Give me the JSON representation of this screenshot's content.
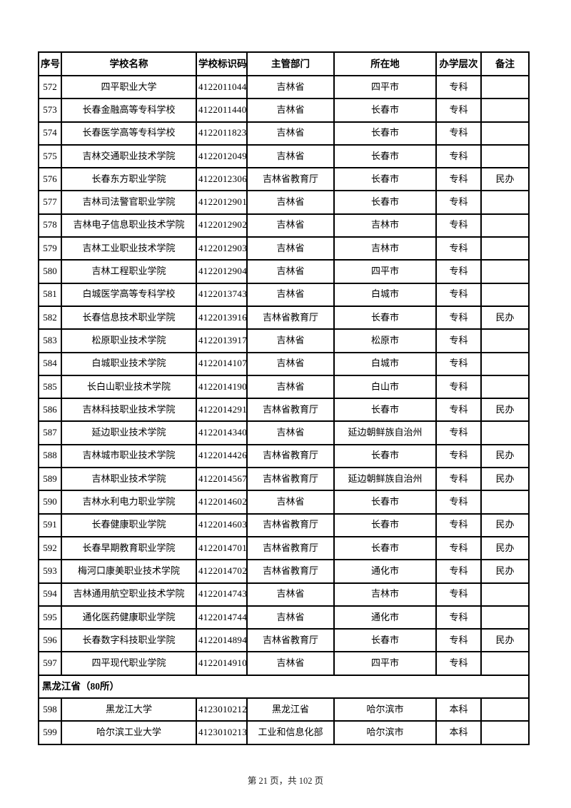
{
  "table": {
    "headers": [
      "序号",
      "学校名称",
      "学校标识码",
      "主管部门",
      "所在地",
      "办学层次",
      "备注"
    ],
    "rows": [
      {
        "cells": [
          "572",
          "四平职业大学",
          "4122011044",
          "吉林省",
          "四平市",
          "专科",
          ""
        ]
      },
      {
        "cells": [
          "573",
          "长春金融高等专科学校",
          "4122011440",
          "吉林省",
          "长春市",
          "专科",
          ""
        ]
      },
      {
        "cells": [
          "574",
          "长春医学高等专科学校",
          "4122011823",
          "吉林省",
          "长春市",
          "专科",
          ""
        ]
      },
      {
        "cells": [
          "575",
          "吉林交通职业技术学院",
          "4122012049",
          "吉林省",
          "长春市",
          "专科",
          ""
        ]
      },
      {
        "cells": [
          "576",
          "长春东方职业学院",
          "4122012306",
          "吉林省教育厅",
          "长春市",
          "专科",
          "民办"
        ]
      },
      {
        "cells": [
          "577",
          "吉林司法警官职业学院",
          "4122012901",
          "吉林省",
          "长春市",
          "专科",
          ""
        ]
      },
      {
        "cells": [
          "578",
          "吉林电子信息职业技术学院",
          "4122012902",
          "吉林省",
          "吉林市",
          "专科",
          ""
        ]
      },
      {
        "cells": [
          "579",
          "吉林工业职业技术学院",
          "4122012903",
          "吉林省",
          "吉林市",
          "专科",
          ""
        ]
      },
      {
        "cells": [
          "580",
          "吉林工程职业学院",
          "4122012904",
          "吉林省",
          "四平市",
          "专科",
          ""
        ]
      },
      {
        "cells": [
          "581",
          "白城医学高等专科学校",
          "4122013743",
          "吉林省",
          "白城市",
          "专科",
          ""
        ]
      },
      {
        "cells": [
          "582",
          "长春信息技术职业学院",
          "4122013916",
          "吉林省教育厅",
          "长春市",
          "专科",
          "民办"
        ]
      },
      {
        "cells": [
          "583",
          "松原职业技术学院",
          "4122013917",
          "吉林省",
          "松原市",
          "专科",
          ""
        ]
      },
      {
        "cells": [
          "584",
          "白城职业技术学院",
          "4122014107",
          "吉林省",
          "白城市",
          "专科",
          ""
        ]
      },
      {
        "cells": [
          "585",
          "长白山职业技术学院",
          "4122014190",
          "吉林省",
          "白山市",
          "专科",
          ""
        ]
      },
      {
        "cells": [
          "586",
          "吉林科技职业技术学院",
          "4122014291",
          "吉林省教育厅",
          "长春市",
          "专科",
          "民办"
        ]
      },
      {
        "cells": [
          "587",
          "延边职业技术学院",
          "4122014340",
          "吉林省",
          "延边朝鲜族自治州",
          "专科",
          ""
        ]
      },
      {
        "cells": [
          "588",
          "吉林城市职业技术学院",
          "4122014426",
          "吉林省教育厅",
          "长春市",
          "专科",
          "民办"
        ]
      },
      {
        "cells": [
          "589",
          "吉林职业技术学院",
          "4122014567",
          "吉林省教育厅",
          "延边朝鲜族自治州",
          "专科",
          "民办"
        ]
      },
      {
        "cells": [
          "590",
          "吉林水利电力职业学院",
          "4122014602",
          "吉林省",
          "长春市",
          "专科",
          ""
        ]
      },
      {
        "cells": [
          "591",
          "长春健康职业学院",
          "4122014603",
          "吉林省教育厅",
          "长春市",
          "专科",
          "民办"
        ]
      },
      {
        "cells": [
          "592",
          "长春早期教育职业学院",
          "4122014701",
          "吉林省教育厅",
          "长春市",
          "专科",
          "民办"
        ]
      },
      {
        "cells": [
          "593",
          "梅河口康美职业技术学院",
          "4122014702",
          "吉林省教育厅",
          "通化市",
          "专科",
          "民办"
        ]
      },
      {
        "cells": [
          "594",
          "吉林通用航空职业技术学院",
          "4122014743",
          "吉林省",
          "吉林市",
          "专科",
          ""
        ]
      },
      {
        "cells": [
          "595",
          "通化医药健康职业学院",
          "4122014744",
          "吉林省",
          "通化市",
          "专科",
          ""
        ]
      },
      {
        "cells": [
          "596",
          "长春数字科技职业学院",
          "4122014894",
          "吉林省教育厅",
          "长春市",
          "专科",
          "民办"
        ]
      },
      {
        "cells": [
          "597",
          "四平现代职业学院",
          "4122014910",
          "吉林省",
          "四平市",
          "专科",
          ""
        ]
      },
      {
        "section": "黑龙江省（80所）"
      },
      {
        "cells": [
          "598",
          "黑龙江大学",
          "4123010212",
          "黑龙江省",
          "哈尔滨市",
          "本科",
          ""
        ]
      },
      {
        "cells": [
          "599",
          "哈尔滨工业大学",
          "4123010213",
          "工业和信息化部",
          "哈尔滨市",
          "本科",
          ""
        ]
      }
    ]
  },
  "footer": {
    "page_text": "第 21 页，共 102 页"
  }
}
